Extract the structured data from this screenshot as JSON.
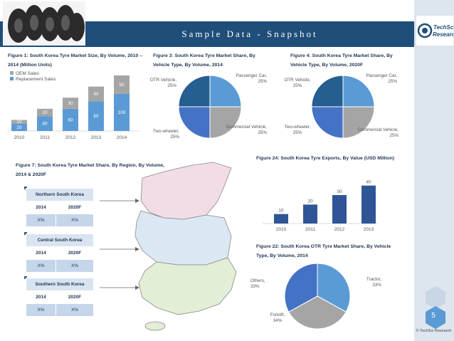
{
  "header": {
    "title": "Sample Data - Snapshot"
  },
  "logo": {
    "line1": "TechSci",
    "line2": "Research"
  },
  "page": {
    "number": "5",
    "copyright": "© TechSci Research"
  },
  "colors": {
    "header": "#1f4e79",
    "blue": "#5b9bd5",
    "gray": "#a5a5a5",
    "navy": "#2f4e8c",
    "darkblue": "#255e91",
    "bar": "#2f5597"
  },
  "chart_data": [
    {
      "id": "fig1",
      "type": "bar",
      "stacked": true,
      "title": "Figure 1: South Korea Tyre Market Size, By Volume, 2010 – 2014 (Million Units)",
      "categories": [
        "2010",
        "2011",
        "2012",
        "2013",
        "2014"
      ],
      "series": [
        {
          "name": "OEM Sales",
          "values": [
            10,
            20,
            30,
            40,
            50
          ]
        },
        {
          "name": "Replacement Sales",
          "values": [
            20,
            40,
            60,
            80,
            100
          ]
        }
      ],
      "ylim": [
        0,
        150
      ],
      "legend": "top-left"
    },
    {
      "id": "fig3",
      "type": "pie",
      "title": "Figure 3: South Korea Tyre Market Share, By Vehicle Type, By Volume, 2014",
      "slices": [
        {
          "label": "Passenger Car, 25%",
          "value": 25
        },
        {
          "label": "Commercial Vehicle, 25%",
          "value": 25
        },
        {
          "label": "Two-wheeler, 25%",
          "value": 25
        },
        {
          "label": "OTR Vehicle, 25%",
          "value": 25
        }
      ]
    },
    {
      "id": "fig4",
      "type": "pie",
      "title": "Figure 4: South Korea Tyre Market Share, By Vehicle Type, By Volume, 2020F",
      "slices": [
        {
          "label": "Passenger Car, 25%",
          "value": 25
        },
        {
          "label": "Commercial Vehicle, 25%",
          "value": 25
        },
        {
          "label": "Two-wheeler, 25%",
          "value": 25
        },
        {
          "label": "OTR Vehicle, 25%",
          "value": 25
        }
      ]
    },
    {
      "id": "fig24",
      "type": "bar",
      "title": "Figure 24: South Korea Tyre Exports, By Value (USD Million)",
      "categories": [
        "2010",
        "2011",
        "2012",
        "2013"
      ],
      "values": [
        10,
        20,
        30,
        40
      ],
      "ylim": [
        0,
        45
      ]
    },
    {
      "id": "fig22",
      "type": "pie",
      "title": "Figure 22: South Korea OTR Tyre Market Share, By Vehicle Type, By Volume, 2014",
      "slices": [
        {
          "label": "Tractor, 33%",
          "value": 33
        },
        {
          "label": "Forklift, 34%",
          "value": 34
        },
        {
          "label": "Others, 33%",
          "value": 33
        }
      ]
    },
    {
      "id": "fig7",
      "type": "table",
      "title": "Figure 7: South Korea Tyre Market Share, By Region, By Volume, 2014 & 2020F",
      "regions": [
        {
          "name": "Northern South Korea",
          "cols": [
            "2014",
            "2020F"
          ],
          "vals": [
            "X%",
            "X%"
          ]
        },
        {
          "name": "Central South Korea",
          "cols": [
            "2014",
            "2020F"
          ],
          "vals": [
            "X%",
            "X%"
          ]
        },
        {
          "name": "Southern South Korea",
          "cols": [
            "2014",
            "2020F"
          ],
          "vals": [
            "X%",
            "X%"
          ]
        }
      ]
    }
  ]
}
